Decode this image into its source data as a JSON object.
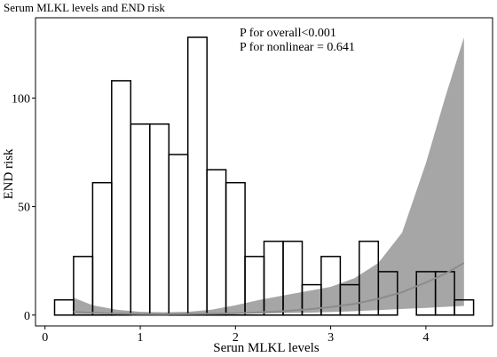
{
  "chart_data": {
    "type": "bar",
    "title": "Serum MLKL levels and END risk",
    "xlabel": "Serun MLKL levels",
    "ylabel": "END risk",
    "annotations": [
      "P for overall<0.001",
      "P for nonlinear = 0.641"
    ],
    "xlim": [
      -0.1,
      4.7
    ],
    "ylim": [
      -5,
      137
    ],
    "x_ticks": [
      0,
      1,
      2,
      3,
      4
    ],
    "y_ticks": [
      0,
      50,
      100
    ],
    "bin_width": 0.2,
    "histogram": {
      "bin_starts": [
        0.1,
        0.3,
        0.5,
        0.7,
        0.9,
        1.1,
        1.3,
        1.5,
        1.7,
        1.9,
        2.1,
        2.3,
        2.5,
        2.7,
        2.9,
        3.1,
        3.3,
        3.5,
        3.7,
        3.9,
        4.1,
        4.3
      ],
      "heights": [
        7,
        27,
        61,
        108,
        88,
        88,
        74,
        128,
        67,
        61,
        27,
        34,
        34,
        14,
        27,
        14,
        34,
        20,
        0,
        20,
        20,
        7
      ]
    },
    "spline": {
      "x": [
        0.3,
        0.5,
        0.75,
        1.0,
        1.25,
        1.5,
        1.75,
        2.0,
        2.25,
        2.5,
        2.75,
        3.0,
        3.25,
        3.5,
        3.75,
        4.0,
        4.2,
        4.4
      ],
      "estimate": [
        1.5,
        1.0,
        0.7,
        0.5,
        0.45,
        0.5,
        0.6,
        0.8,
        1.2,
        1.8,
        2.6,
        3.7,
        5.2,
        7.5,
        10.5,
        15,
        19,
        24
      ],
      "lower": [
        0.4,
        0.4,
        0.35,
        0.3,
        0.3,
        0.35,
        0.4,
        0.5,
        0.7,
        0.9,
        1.1,
        1.4,
        1.8,
        2.3,
        2.8,
        3.3,
        3.8,
        4.2
      ],
      "upper": [
        8,
        4.5,
        2.5,
        1.5,
        1.3,
        1.5,
        2.5,
        4.5,
        7,
        9,
        11,
        13,
        17,
        24,
        38,
        70,
        100,
        128
      ]
    },
    "colors": {
      "bars": "#ffffff",
      "bar_stroke": "#000000",
      "ci_band": "#a6a6a6",
      "line": "#8c8c8c"
    },
    "grid": false,
    "legend": "none"
  }
}
